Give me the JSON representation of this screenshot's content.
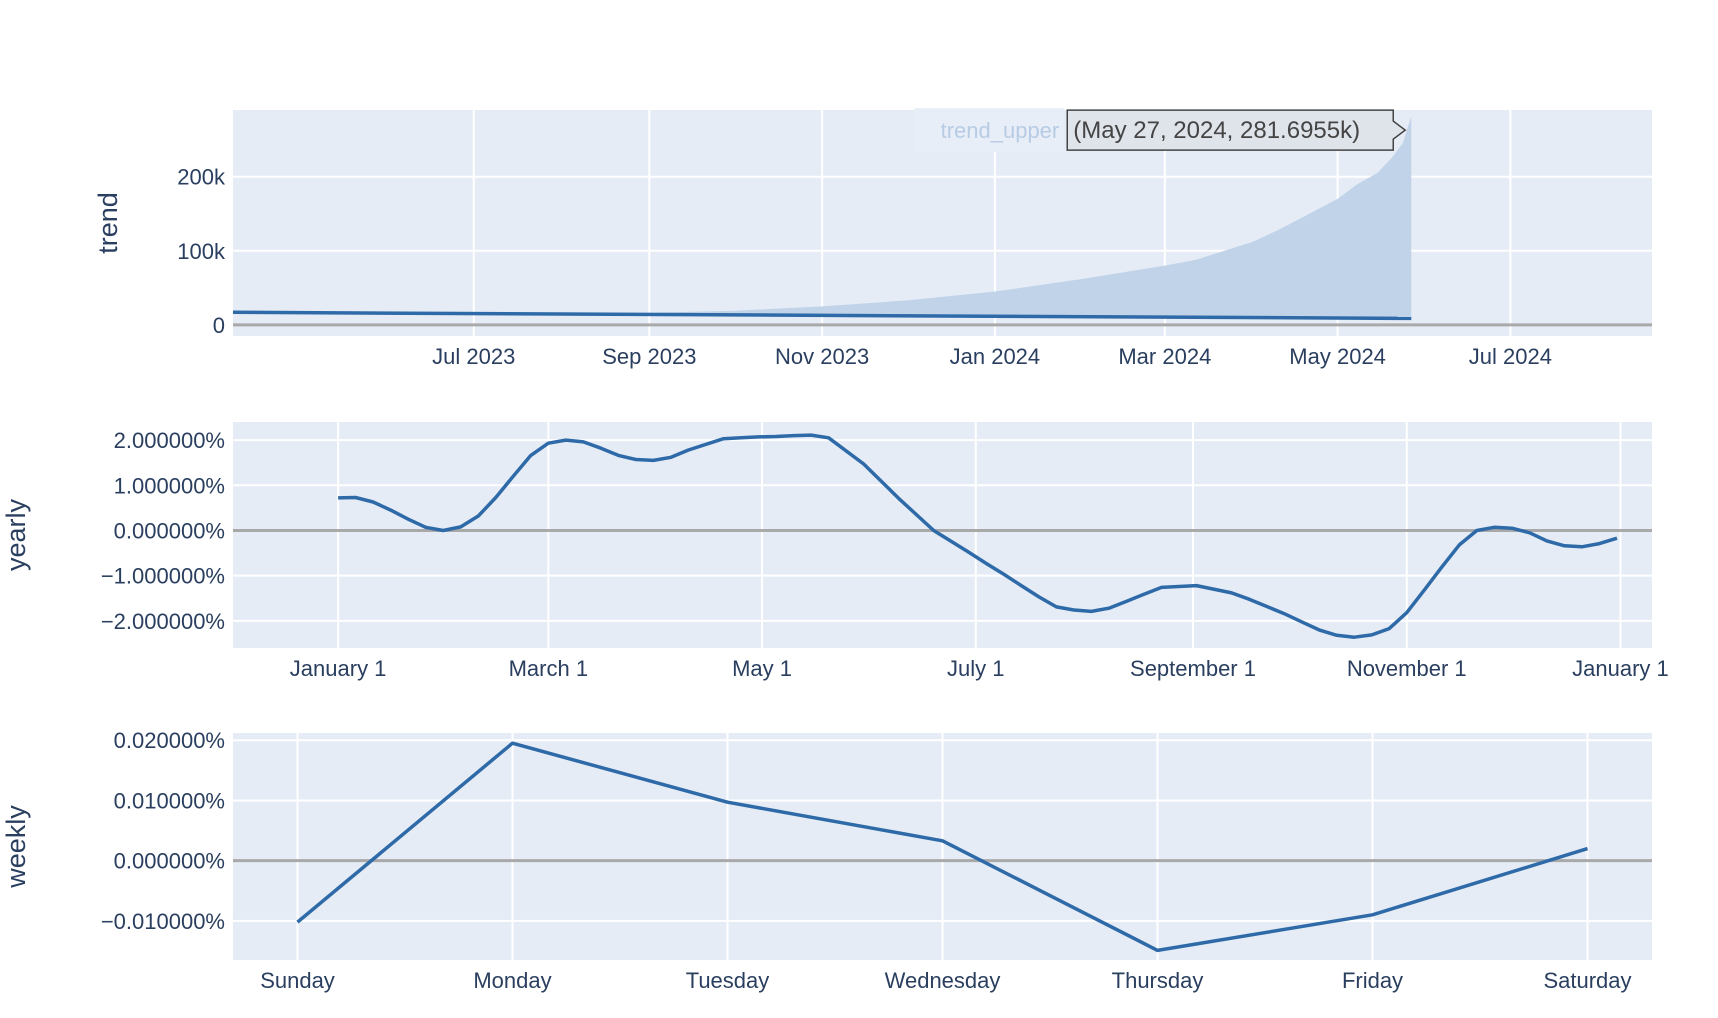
{
  "colors": {
    "plot_bg": "#e5ecf6",
    "grid": "#ffffff",
    "zero_line": "#a9a9a9",
    "line": "#2f6aa8",
    "band_fill": "#c1d3e8",
    "text": "#2a3f5f"
  },
  "chart_data": [
    {
      "type": "area",
      "ylabel": "trend",
      "xlim": [
        "2023-04-07",
        "2024-08-20"
      ],
      "ylim": [
        -15000,
        290000
      ],
      "xticks": [
        {
          "date": "2023-07-01",
          "label": "Jul 2023"
        },
        {
          "date": "2023-09-01",
          "label": "Sep 2023"
        },
        {
          "date": "2023-11-01",
          "label": "Nov 2023"
        },
        {
          "date": "2024-01-01",
          "label": "Jan 2024"
        },
        {
          "date": "2024-03-01",
          "label": "Mar 2024"
        },
        {
          "date": "2024-05-01",
          "label": "May 2024"
        },
        {
          "date": "2024-07-01",
          "label": "Jul 2024"
        }
      ],
      "yticks": [
        {
          "value": 0,
          "label": "0"
        },
        {
          "value": 100000,
          "label": "100k"
        },
        {
          "value": 200000,
          "label": "200k"
        }
      ],
      "series": [
        {
          "name": "trend_upper",
          "role": "band",
          "x": [
            "2023-04-07",
            "2023-07-01",
            "2023-09-01",
            "2023-10-01",
            "2023-11-01",
            "2023-12-01",
            "2024-01-01",
            "2024-02-01",
            "2024-03-01",
            "2024-03-12",
            "2024-03-22",
            "2024-04-01",
            "2024-04-10",
            "2024-04-20",
            "2024-05-01",
            "2024-05-08",
            "2024-05-15",
            "2024-05-20",
            "2024-05-24",
            "2024-05-27"
          ],
          "upper": [
            17000,
            16000,
            16500,
            19000,
            25000,
            33000,
            45000,
            62000,
            80000,
            88000,
            100000,
            112000,
            128000,
            148000,
            170000,
            190000,
            205000,
            225000,
            245000,
            281695.5
          ],
          "lower": [
            17000,
            15800,
            14800,
            14300,
            13800,
            13200,
            12600,
            12000,
            11400,
            11100,
            10900,
            10600,
            10300,
            10000,
            9700,
            9400,
            9200,
            9000,
            8900,
            8800
          ]
        },
        {
          "name": "trend",
          "role": "line",
          "x": [
            "2023-04-07",
            "2024-05-27"
          ],
          "y": [
            17000,
            8800
          ]
        }
      ],
      "tooltip": {
        "name": "trend_upper",
        "text": "(May 27, 2024, 281.6955k)",
        "x": "2024-05-27",
        "y": 281695.5
      }
    },
    {
      "type": "line",
      "ylabel": "yearly",
      "xlim": [
        -30,
        375
      ],
      "ylim": [
        -2.6,
        2.4
      ],
      "xticks": [
        {
          "value": 0,
          "label": "January  1"
        },
        {
          "value": 60,
          "label": "March  1"
        },
        {
          "value": 121,
          "label": "May  1"
        },
        {
          "value": 182,
          "label": "July  1"
        },
        {
          "value": 244,
          "label": "September  1"
        },
        {
          "value": 305,
          "label": "November  1"
        },
        {
          "value": 366,
          "label": "January  1"
        }
      ],
      "yticks": [
        {
          "value": 2,
          "label": "2.000000%"
        },
        {
          "value": 1,
          "label": "1.000000%"
        },
        {
          "value": 0,
          "label": "0.000000%"
        },
        {
          "value": -1,
          "label": "−1.000000%"
        },
        {
          "value": -2,
          "label": "−2.000000%"
        }
      ],
      "series": [
        {
          "x": [
            0,
            5,
            10,
            15,
            20,
            25,
            30,
            35,
            40,
            45,
            50,
            55,
            60,
            65,
            70,
            75,
            80,
            85,
            90,
            95,
            100,
            110,
            115,
            120,
            125,
            130,
            135,
            140,
            150,
            160,
            170,
            180,
            185,
            190,
            195,
            200,
            205,
            210,
            215,
            220,
            225,
            230,
            235,
            245,
            255,
            260,
            265,
            270,
            275,
            280,
            285,
            290,
            295,
            300,
            305,
            310,
            315,
            320,
            325,
            330,
            335,
            340,
            345,
            350,
            355,
            360,
            365
          ],
          "y": [
            0.72,
            0.73,
            0.63,
            0.45,
            0.25,
            0.07,
            0.0,
            0.08,
            0.32,
            0.73,
            1.2,
            1.66,
            1.93,
            2.0,
            1.96,
            1.82,
            1.66,
            1.57,
            1.55,
            1.62,
            1.78,
            2.03,
            2.05,
            2.07,
            2.08,
            2.1,
            2.11,
            2.05,
            1.47,
            0.71,
            0.0,
            -0.48,
            -0.73,
            -0.97,
            -1.22,
            -1.47,
            -1.69,
            -1.76,
            -1.79,
            -1.72,
            -1.57,
            -1.41,
            -1.26,
            -1.22,
            -1.38,
            -1.52,
            -1.68,
            -1.84,
            -2.02,
            -2.2,
            -2.32,
            -2.36,
            -2.31,
            -2.17,
            -1.82,
            -1.32,
            -0.81,
            -0.32,
            0.0,
            0.07,
            0.05,
            -0.05,
            -0.23,
            -0.34,
            -0.36,
            -0.29,
            -0.17
          ]
        }
      ]
    },
    {
      "type": "line",
      "ylabel": "weekly",
      "categories": [
        "Sunday",
        "Monday",
        "Tuesday",
        "Wednesday",
        "Thursday",
        "Friday",
        "Saturday"
      ],
      "ylim": [
        -0.0165,
        0.0212
      ],
      "yticks": [
        {
          "value": 0.02,
          "label": "0.020000%"
        },
        {
          "value": 0.01,
          "label": "0.010000%"
        },
        {
          "value": 0,
          "label": "0.000000%"
        },
        {
          "value": -0.01,
          "label": "−0.010000%"
        }
      ],
      "series": [
        {
          "y": [
            -0.0102,
            0.0195,
            0.0097,
            0.0033,
            -0.0149,
            -0.009,
            0.002
          ]
        }
      ]
    }
  ]
}
